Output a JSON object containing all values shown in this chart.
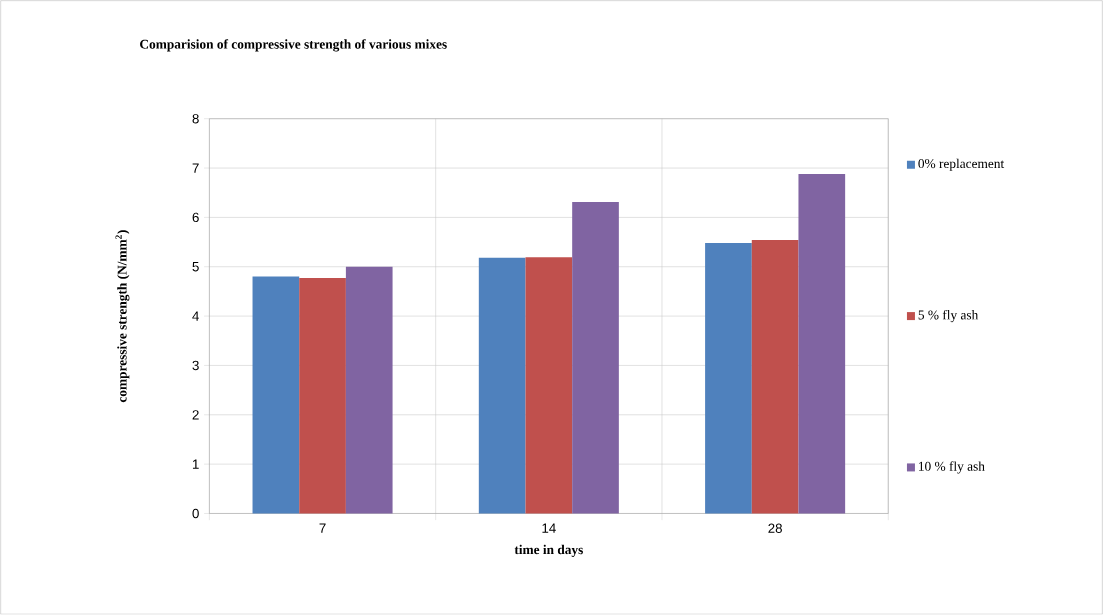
{
  "chart_data": {
    "type": "bar",
    "title": "Comparision of compressive strength of various mixes",
    "xlabel": "time in days",
    "ylabel": "compressive strength (N/mm$^{2}$)",
    "categories": [
      "7",
      "14",
      "28"
    ],
    "series": [
      {
        "name": "0% replacement",
        "color": "#4f81bd",
        "values": [
          4.8,
          5.18,
          5.48
        ]
      },
      {
        "name": "5 % fly ash",
        "color": "#c0504d",
        "values": [
          4.77,
          5.19,
          5.54
        ]
      },
      {
        "name": "10 % fly ash",
        "color": "#8064a2",
        "values": [
          5.0,
          6.31,
          6.88
        ]
      }
    ],
    "ylim": [
      0,
      8
    ],
    "yticks": [
      0,
      1,
      2,
      3,
      4,
      5,
      6,
      7,
      8
    ],
    "grid": true,
    "legend": "right"
  }
}
